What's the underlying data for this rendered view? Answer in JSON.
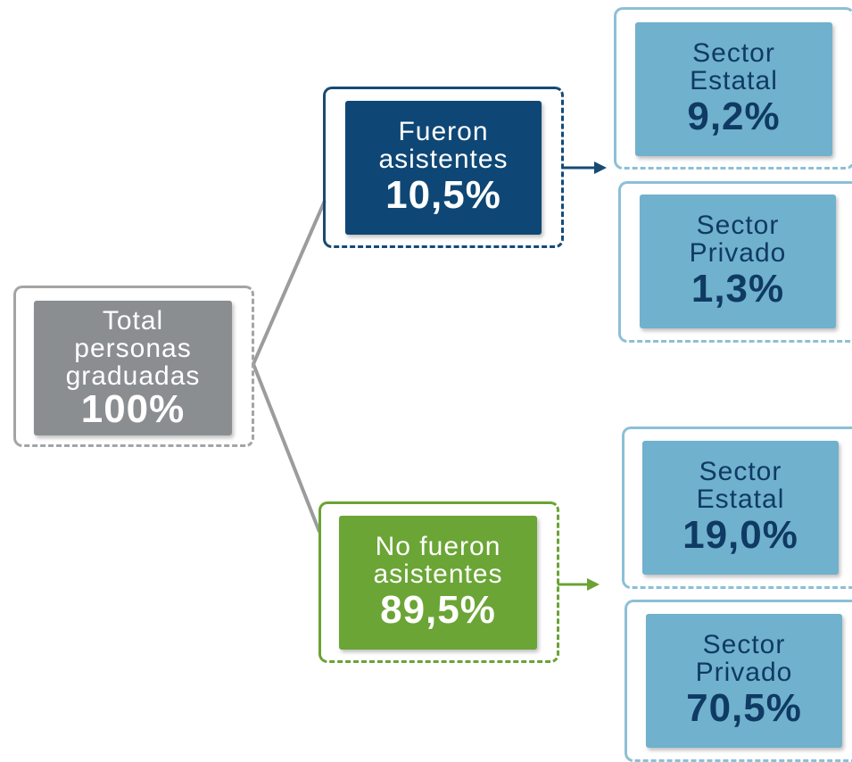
{
  "nodes": [
    {
      "label": "Total personas graduadas",
      "value": "100%"
    },
    {
      "label": "Fueron asistentes",
      "value": "10,5%"
    },
    {
      "label": "No fueron asistentes",
      "value": "89,5%"
    },
    {
      "label": "Sector Estatal",
      "value": "9,2%"
    },
    {
      "label": "Sector Privado",
      "value": "1,3%"
    },
    {
      "label": "Sector Estatal",
      "value": "19,0%"
    },
    {
      "label": "Sector Privado",
      "value": "70,5%"
    }
  ]
}
